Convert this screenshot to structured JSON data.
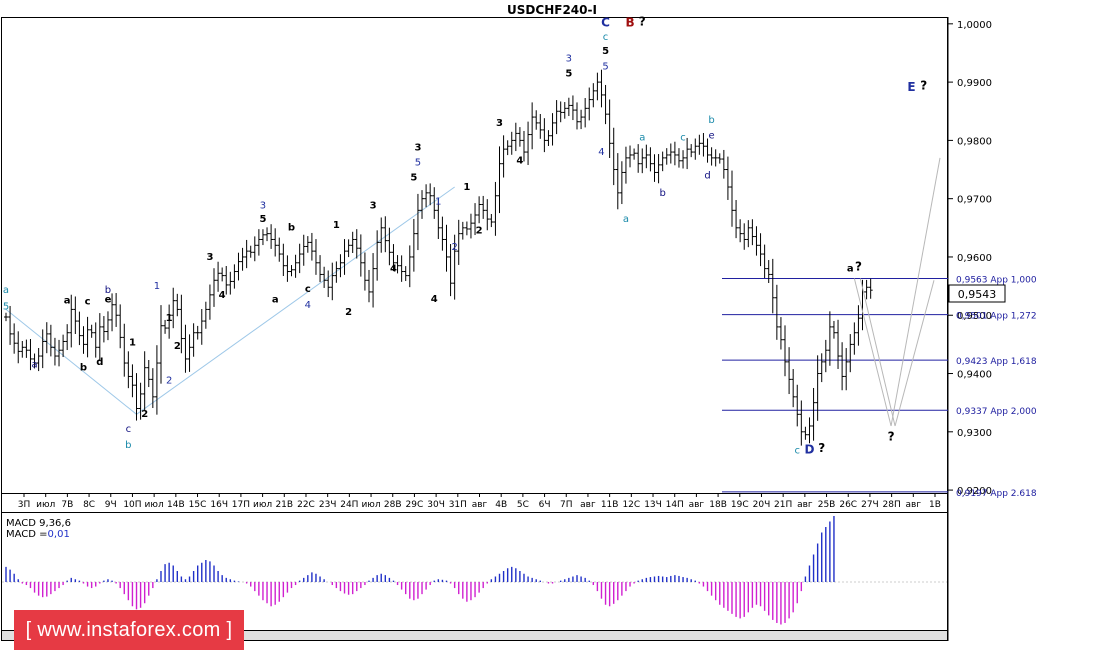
{
  "chart_data": {
    "type": "line",
    "title": "USDCHF240-I",
    "symbol": "USDCHF240-I",
    "current_price": "0,9543",
    "ylim": [
      0.9195,
      1.001
    ],
    "y_ticks": [
      "1,0000",
      "0,9900",
      "0,9800",
      "0,9700",
      "0,9600",
      "0,9500",
      "0,9400",
      "0,9300",
      "0,9200"
    ],
    "x_ticks": [
      "3П",
      "июл",
      "7В",
      "8С",
      "9Ч",
      "10П",
      "июл",
      "14В",
      "15С",
      "16Ч",
      "17П",
      "июл",
      "21В",
      "22С",
      "23Ч",
      "24П",
      "июл",
      "28В",
      "29С",
      "30Ч",
      "31П",
      "авг",
      "4В",
      "5С",
      "6Ч",
      "7П",
      "авг",
      "11В",
      "12С",
      "13Ч",
      "14П",
      "авг",
      "18В",
      "19С",
      "20Ч",
      "21П",
      "авг",
      "25В",
      "26С",
      "27Ч",
      "28П",
      "авг",
      "1В"
    ],
    "price_series": {
      "name": "",
      "x": [
        0,
        1,
        2,
        3,
        4,
        5,
        6,
        7,
        8,
        9,
        10,
        11,
        12,
        13,
        14,
        15,
        16,
        17,
        18,
        19,
        20,
        21,
        22,
        23,
        24,
        25,
        26,
        27,
        28,
        29,
        30,
        31,
        32,
        33,
        34,
        35,
        36,
        37,
        38,
        39,
        40,
        41,
        42,
        43,
        44,
        45,
        46,
        47,
        48,
        49,
        50,
        51,
        52,
        53,
        54,
        55,
        56,
        57,
        58,
        59,
        60,
        61,
        62,
        63,
        64,
        65,
        66,
        67,
        68,
        69,
        70,
        71,
        72,
        73,
        74,
        75,
        76,
        77,
        78,
        79,
        80,
        81,
        82,
        83,
        84,
        85,
        86,
        87,
        88,
        89,
        90,
        91,
        92,
        93,
        94,
        95,
        96,
        97,
        98,
        99,
        100,
        101,
        102,
        103,
        104,
        105,
        106,
        107,
        108,
        109,
        110,
        111,
        112,
        113,
        114,
        115,
        116,
        117,
        118,
        119,
        120,
        121,
        122,
        123,
        124,
        125,
        126,
        127,
        128,
        129,
        130,
        131,
        132,
        133,
        134,
        135,
        136,
        137,
        138,
        139,
        140,
        141,
        142,
        143,
        144,
        145,
        146,
        147,
        148,
        149,
        150,
        151,
        152,
        153,
        154,
        155,
        156,
        157,
        158,
        159,
        160,
        161,
        162,
        163,
        164,
        165,
        166,
        167,
        168,
        169,
        170,
        171,
        172,
        173,
        174,
        175,
        176,
        177,
        178,
        179,
        180,
        181,
        182,
        183,
        184,
        185,
        186,
        187,
        188,
        189,
        190,
        191,
        192,
        193,
        194,
        195,
        196,
        197,
        198,
        199,
        200,
        201,
        202,
        203,
        204,
        205,
        206,
        207,
        208,
        209,
        210,
        211,
        212
      ],
      "values": [
        0.9497,
        0.9468,
        0.9452,
        0.9438,
        0.9445,
        0.944,
        0.9425,
        0.9418,
        0.943,
        0.9455,
        0.9468,
        0.9445,
        0.943,
        0.944,
        0.9455,
        0.947,
        0.951,
        0.949,
        0.9465,
        0.945,
        0.9475,
        0.947,
        0.9445,
        0.948,
        0.9472,
        0.9492,
        0.9518,
        0.95,
        0.9462,
        0.9418,
        0.9395,
        0.938,
        0.934,
        0.9365,
        0.941,
        0.939,
        0.936,
        0.9418,
        0.9482,
        0.9478,
        0.95,
        0.9525,
        0.951,
        0.946,
        0.9425,
        0.9445,
        0.947,
        0.947,
        0.949,
        0.951,
        0.9535,
        0.956,
        0.9572,
        0.9568,
        0.9552,
        0.9558,
        0.9575,
        0.9592,
        0.96,
        0.961,
        0.9608,
        0.962,
        0.963,
        0.9638,
        0.964,
        0.963,
        0.962,
        0.9605,
        0.9585,
        0.9575,
        0.9578,
        0.959,
        0.9605,
        0.9618,
        0.9625,
        0.961,
        0.959,
        0.957,
        0.956,
        0.9548,
        0.9568,
        0.958,
        0.959,
        0.961,
        0.962,
        0.963,
        0.9615,
        0.959,
        0.956,
        0.954,
        0.958,
        0.9625,
        0.965,
        0.9628,
        0.9608,
        0.959,
        0.9585,
        0.9575,
        0.9568,
        0.96,
        0.964,
        0.968,
        0.97,
        0.971,
        0.9705,
        0.968,
        0.965,
        0.963,
        0.96,
        0.9555,
        0.961,
        0.964,
        0.965,
        0.9648,
        0.9658,
        0.9672,
        0.969,
        0.968,
        0.9665,
        0.966,
        0.9705,
        0.976,
        0.9785,
        0.979,
        0.98,
        0.9812,
        0.98,
        0.978,
        0.981,
        0.984,
        0.983,
        0.9818,
        0.98,
        0.9808,
        0.983,
        0.985,
        0.9848,
        0.9855,
        0.986,
        0.9852,
        0.9832,
        0.984,
        0.9855,
        0.987,
        0.9885,
        0.99,
        0.9878,
        0.9845,
        0.9795,
        0.975,
        0.971,
        0.9745,
        0.977,
        0.9775,
        0.9778,
        0.976,
        0.977,
        0.9775,
        0.976,
        0.9745,
        0.9758,
        0.977,
        0.9775,
        0.978,
        0.9775,
        0.9765,
        0.977,
        0.9785,
        0.978,
        0.979,
        0.9795,
        0.979,
        0.9775,
        0.977,
        0.977,
        0.9768,
        0.975,
        0.972,
        0.968,
        0.965,
        0.964,
        0.963,
        0.965,
        0.9635,
        0.962,
        0.9605,
        0.958,
        0.957,
        0.953,
        0.948,
        0.9458,
        0.942,
        0.939,
        0.936,
        0.933,
        0.93,
        0.9295,
        0.931,
        0.935,
        0.94,
        0.942,
        0.944,
        0.948,
        0.947,
        0.943,
        0.9395,
        0.942,
        0.945,
        0.947,
        0.9495,
        0.954,
        0.9548,
        0.9543
      ]
    },
    "fib_levels": [
      {
        "price": 0.9563,
        "label": "0,9563 App 1,000"
      },
      {
        "price": 0.9501,
        "label": "0,9501 App 1,272"
      },
      {
        "price": 0.9423,
        "label": "0,9423 App 1,618"
      },
      {
        "price": 0.9337,
        "label": "0,9337 App 2,000"
      },
      {
        "price": 0.9197,
        "label": "0,9197 App 2.618"
      }
    ],
    "wave_labels": [
      {
        "text": "a",
        "x": 0,
        "price": 0.9538,
        "color": "#1a8aaa"
      },
      {
        "text": "5",
        "x": 0,
        "price": 0.951,
        "color": "#1a8aaa"
      },
      {
        "text": "a",
        "x": 7,
        "price": 0.941,
        "color": "#101080"
      },
      {
        "text": "a",
        "x": 15,
        "price": 0.952,
        "color": "#000000"
      },
      {
        "text": "b",
        "x": 19,
        "price": 0.9405,
        "color": "#000000"
      },
      {
        "text": "c",
        "x": 20,
        "price": 0.9518,
        "color": "#000000"
      },
      {
        "text": "d",
        "x": 23,
        "price": 0.9415,
        "color": "#000000"
      },
      {
        "text": "b",
        "x": 25,
        "price": 0.9538,
        "color": "#101080"
      },
      {
        "text": "e",
        "x": 25,
        "price": 0.9522,
        "color": "#000000"
      },
      {
        "text": "c",
        "x": 30,
        "price": 0.93,
        "color": "#101080"
      },
      {
        "text": "b",
        "x": 30,
        "price": 0.9272,
        "color": "#1a8aaa"
      },
      {
        "text": "1",
        "x": 31,
        "price": 0.9448,
        "color": "#000000"
      },
      {
        "text": "2",
        "x": 34,
        "price": 0.9325,
        "color": "#000000"
      },
      {
        "text": "1",
        "x": 37,
        "price": 0.9545,
        "color": "#2030a0"
      },
      {
        "text": "1",
        "x": 40,
        "price": 0.949,
        "color": "#000000"
      },
      {
        "text": "2",
        "x": 42,
        "price": 0.9442,
        "color": "#000000"
      },
      {
        "text": "2",
        "x": 40,
        "price": 0.9383,
        "color": "#2030a0"
      },
      {
        "text": "3",
        "x": 50,
        "price": 0.9595,
        "color": "#000000"
      },
      {
        "text": "4",
        "x": 53,
        "price": 0.953,
        "color": "#000000"
      },
      {
        "text": "3",
        "x": 63,
        "price": 0.9683,
        "color": "#2030a0"
      },
      {
        "text": "5",
        "x": 63,
        "price": 0.966,
        "color": "#000000"
      },
      {
        "text": "a",
        "x": 66,
        "price": 0.9522,
        "color": "#000000"
      },
      {
        "text": "b",
        "x": 70,
        "price": 0.9645,
        "color": "#000000"
      },
      {
        "text": "c",
        "x": 74,
        "price": 0.954,
        "color": "#000000"
      },
      {
        "text": "4",
        "x": 74,
        "price": 0.9512,
        "color": "#2030a0"
      },
      {
        "text": "1",
        "x": 81,
        "price": 0.965,
        "color": "#000000"
      },
      {
        "text": "2",
        "x": 84,
        "price": 0.95,
        "color": "#000000"
      },
      {
        "text": "3",
        "x": 90,
        "price": 0.9683,
        "color": "#000000"
      },
      {
        "text": "4",
        "x": 95,
        "price": 0.9575,
        "color": "#000000"
      },
      {
        "text": "3",
        "x": 101,
        "price": 0.9783,
        "color": "#000000"
      },
      {
        "text": "5",
        "x": 101,
        "price": 0.9757,
        "color": "#2030a0"
      },
      {
        "text": "5",
        "x": 100,
        "price": 0.9731,
        "color": "#000000"
      },
      {
        "text": "4",
        "x": 105,
        "price": 0.9523,
        "color": "#000000"
      },
      {
        "text": "1",
        "x": 106,
        "price": 0.969,
        "color": "#2030a0"
      },
      {
        "text": "2",
        "x": 110,
        "price": 0.9612,
        "color": "#2030a0"
      },
      {
        "text": "1",
        "x": 113,
        "price": 0.9715,
        "color": "#000000"
      },
      {
        "text": "2",
        "x": 116,
        "price": 0.964,
        "color": "#000000"
      },
      {
        "text": "3",
        "x": 121,
        "price": 0.9825,
        "color": "#000000"
      },
      {
        "text": "4",
        "x": 126,
        "price": 0.976,
        "color": "#000000"
      },
      {
        "text": "3",
        "x": 138,
        "price": 0.9935,
        "color": "#2030a0"
      },
      {
        "text": "5",
        "x": 138,
        "price": 0.991,
        "color": "#000000"
      },
      {
        "text": "C",
        "x": 147,
        "price": 0.9995,
        "color": "#2030a0"
      },
      {
        "text": "c",
        "x": 147,
        "price": 0.9972,
        "color": "#1a8aaa"
      },
      {
        "text": "5",
        "x": 147,
        "price": 0.9948,
        "color": "#000000"
      },
      {
        "text": "5",
        "x": 147,
        "price": 0.9922,
        "color": "#2030a0"
      },
      {
        "text": "B",
        "x": 153,
        "price": 0.9995,
        "color": "#a01010"
      },
      {
        "text": "?",
        "x": 156,
        "price": 0.9997,
        "color": "#000000"
      },
      {
        "text": "4",
        "x": 146,
        "price": 0.9775,
        "color": "#2030a0"
      },
      {
        "text": "a",
        "x": 152,
        "price": 0.966,
        "color": "#1a8aaa"
      },
      {
        "text": "a",
        "x": 156,
        "price": 0.98,
        "color": "#1a8aaa"
      },
      {
        "text": "b",
        "x": 161,
        "price": 0.9705,
        "color": "#101080"
      },
      {
        "text": "c",
        "x": 166,
        "price": 0.98,
        "color": "#1a8aaa"
      },
      {
        "text": "b",
        "x": 173,
        "price": 0.983,
        "color": "#1a8aaa"
      },
      {
        "text": "e",
        "x": 173,
        "price": 0.9803,
        "color": "#101080"
      },
      {
        "text": "d",
        "x": 172,
        "price": 0.9735,
        "color": "#101080"
      },
      {
        "text": "c",
        "x": 194,
        "price": 0.9263,
        "color": "#1a8aaa"
      },
      {
        "text": "D",
        "x": 197,
        "price": 0.9263,
        "color": "#2030a0"
      },
      {
        "text": "?",
        "x": 200,
        "price": 0.9265,
        "color": "#000000"
      },
      {
        "text": "a",
        "x": 207,
        "price": 0.9575,
        "color": "#000000"
      },
      {
        "text": "?",
        "x": 209,
        "price": 0.9577,
        "color": "#000000"
      }
    ],
    "projection": {
      "points": [
        {
          "x": 208,
          "price": 0.9563
        },
        {
          "x": 217,
          "price": 0.931
        },
        {
          "x": 229,
          "price": 0.977
        }
      ],
      "labels": [
        {
          "text": "?",
          "x": 217,
          "price": 0.9285,
          "color": "#000000"
        },
        {
          "text": "E",
          "x": 222,
          "price": 0.9885,
          "color": "#2030a0"
        },
        {
          "text": "?",
          "x": 225,
          "price": 0.9887,
          "color": "#000000"
        }
      ]
    },
    "trend_line": [
      {
        "x": 0,
        "price": 0.951
      },
      {
        "x": 32,
        "price": 0.933
      },
      {
        "x": 110,
        "price": 0.972
      }
    ],
    "macd": {
      "label1": "MACD 9,36,6",
      "label2_prefix": "MACD =",
      "label2_value": "0,01",
      "values": [
        0.55,
        0.45,
        0.3,
        0.1,
        -0.05,
        -0.1,
        -0.2,
        -0.35,
        -0.45,
        -0.5,
        -0.48,
        -0.4,
        -0.3,
        -0.2,
        -0.1,
        0.05,
        0.15,
        0.1,
        0.05,
        -0.05,
        -0.15,
        -0.2,
        -0.15,
        -0.05,
        0.05,
        0.1,
        0.05,
        -0.05,
        -0.2,
        -0.4,
        -0.6,
        -0.8,
        -0.9,
        -0.85,
        -0.7,
        -0.45,
        -0.2,
        0.1,
        0.4,
        0.65,
        0.7,
        0.6,
        0.4,
        0.2,
        0.1,
        0.2,
        0.4,
        0.6,
        0.7,
        0.8,
        0.75,
        0.6,
        0.4,
        0.25,
        0.15,
        0.1,
        0.05,
        0.02,
        0.0,
        -0.05,
        -0.15,
        -0.3,
        -0.45,
        -0.6,
        -0.7,
        -0.8,
        -0.75,
        -0.65,
        -0.5,
        -0.35,
        -0.2,
        -0.1,
        0.05,
        0.15,
        0.25,
        0.35,
        0.3,
        0.2,
        0.1,
        0.0,
        -0.1,
        -0.2,
        -0.3,
        -0.38,
        -0.42,
        -0.4,
        -0.3,
        -0.2,
        -0.1,
        0.05,
        0.15,
        0.25,
        0.3,
        0.25,
        0.15,
        0.05,
        -0.1,
        -0.25,
        -0.4,
        -0.55,
        -0.6,
        -0.55,
        -0.4,
        -0.25,
        -0.1,
        0.05,
        0.1,
        0.08,
        0.05,
        -0.05,
        -0.2,
        -0.4,
        -0.55,
        -0.65,
        -0.6,
        -0.5,
        -0.35,
        -0.2,
        -0.05,
        0.1,
        0.2,
        0.3,
        0.4,
        0.5,
        0.55,
        0.5,
        0.4,
        0.3,
        0.2,
        0.15,
        0.1,
        0.05,
        0.0,
        -0.05,
        -0.05,
        0.0,
        0.05,
        0.1,
        0.15,
        0.2,
        0.25,
        0.2,
        0.15,
        0.05,
        -0.1,
        -0.3,
        -0.55,
        -0.75,
        -0.8,
        -0.72,
        -0.6,
        -0.45,
        -0.3,
        -0.15,
        -0.05,
        0.05,
        0.1,
        0.15,
        0.18,
        0.2,
        0.22,
        0.2,
        0.18,
        0.22,
        0.25,
        0.22,
        0.18,
        0.15,
        0.1,
        0.05,
        -0.05,
        -0.15,
        -0.3,
        -0.45,
        -0.6,
        -0.75,
        -0.85,
        -0.95,
        -1.05,
        -1.15,
        -1.2,
        -1.15,
        -1.0,
        -0.85,
        -0.75,
        -0.8,
        -0.95,
        -1.1,
        -1.25,
        -1.35,
        -1.4,
        -1.35,
        -1.2,
        -1.0,
        -0.7,
        -0.3,
        0.2,
        0.6,
        1.0,
        1.4,
        1.8,
        2.0,
        2.2,
        2.4
      ]
    }
  },
  "watermark": {
    "text": "[ www.instaforex.com ]"
  },
  "colors": {
    "price": "#000000",
    "level_line": "#2020a0",
    "trend_line": "#9ec8e8",
    "projection": "#b8b8b8",
    "macd_pos": "#2030c8",
    "macd_neg": "#d020d0",
    "price_box": "#ffffff"
  }
}
